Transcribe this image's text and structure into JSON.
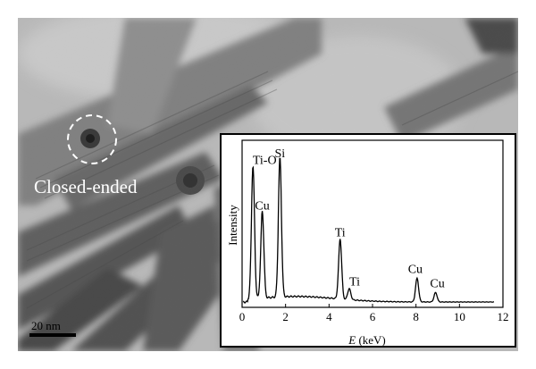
{
  "micrograph": {
    "annotation_label": "Closed-ended",
    "scale_bar_label": "20 nm"
  },
  "inset": {
    "chart_data": {
      "type": "line",
      "xlabel_var": "E",
      "xlabel_unit": " (keV)",
      "ylabel": "Intensity",
      "xlim": [
        0,
        12
      ],
      "x_ticks": [
        0,
        2,
        4,
        6,
        8,
        10,
        12
      ],
      "y_ticks_shown": false,
      "series": [
        {
          "peaks": [
            {
              "label": "Ti-O",
              "x": 0.5,
              "height": 0.84
            },
            {
              "label": "Cu",
              "x": 0.93,
              "height": 0.55
            },
            {
              "label": "Si",
              "x": 1.74,
              "height": 0.88
            },
            {
              "label": "Ti",
              "x": 4.51,
              "height": 0.38
            },
            {
              "label": "Ti",
              "x": 4.93,
              "height": 0.07
            },
            {
              "label": "Cu",
              "x": 8.05,
              "height": 0.15
            },
            {
              "label": "Cu",
              "x": 8.9,
              "height": 0.06
            }
          ]
        }
      ]
    }
  },
  "colors": {
    "micrograph_background": "#b9b9b9",
    "nanotube_dark": "#3c3c3c",
    "spectrum_line": "#000000",
    "annotation_white": "#ffffff"
  }
}
